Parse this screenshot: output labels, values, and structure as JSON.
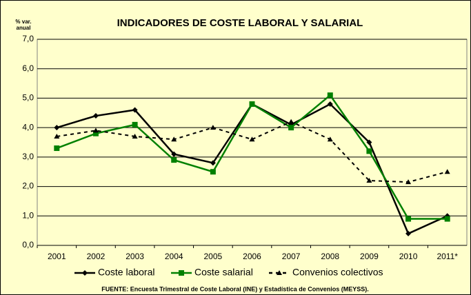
{
  "chart_data": {
    "type": "line",
    "title": "INDICADORES DE COSTE LABORAL Y SALARIAL",
    "y_label": [
      "% var.",
      "anual"
    ],
    "source": "FUENTE: Encuesta Trimestral de Coste Laboral (INE) y Estadística de Convenios (MEYSS).",
    "categories": [
      "2001",
      "2002",
      "2003",
      "2004",
      "2005",
      "2006",
      "2007",
      "2008",
      "2009",
      "2010",
      "2011*"
    ],
    "series": [
      {
        "name": "Coste laboral",
        "color": "#000000",
        "marker": "diamond",
        "dash": false,
        "values": [
          4.0,
          4.4,
          4.6,
          3.1,
          2.8,
          4.8,
          4.1,
          4.8,
          3.5,
          0.4,
          1.0
        ]
      },
      {
        "name": "Coste salarial",
        "color": "#008000",
        "marker": "square",
        "dash": false,
        "values": [
          3.3,
          3.8,
          4.1,
          2.9,
          2.5,
          4.8,
          4.0,
          5.1,
          3.2,
          0.9,
          0.9
        ]
      },
      {
        "name": "Convenios colectivos",
        "color": "#000000",
        "marker": "triangle",
        "dash": true,
        "values": [
          3.7,
          3.9,
          3.7,
          3.6,
          4.0,
          3.6,
          4.2,
          3.6,
          2.2,
          2.15,
          2.5
        ]
      }
    ],
    "ylim": [
      0,
      7
    ],
    "yticks": [
      {
        "value": 0,
        "label": "0,0"
      },
      {
        "value": 1,
        "label": "1,0"
      },
      {
        "value": 2,
        "label": "2,0"
      },
      {
        "value": 3,
        "label": "3,0"
      },
      {
        "value": 4,
        "label": "4,0"
      },
      {
        "value": 5,
        "label": "5,0"
      },
      {
        "value": 6,
        "label": "6,0"
      },
      {
        "value": 7,
        "label": "7,0"
      }
    ],
    "grid": true,
    "legend": "bottom",
    "background": "#ffffcc"
  }
}
